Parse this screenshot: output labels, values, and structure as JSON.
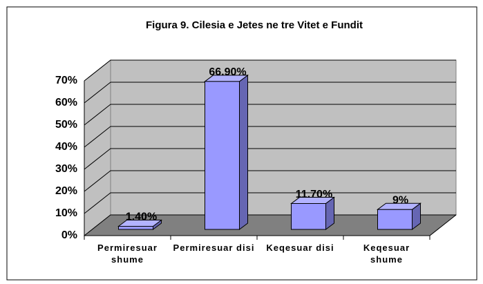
{
  "chart_data": {
    "type": "bar3d",
    "title": "Figura 9. Cilesia e Jetes ne tre Vitet e Fundit",
    "categories": [
      "Permiresuar shume",
      "Permiresuar disi",
      "Keqesuar disi",
      "Keqesuar shume"
    ],
    "values": [
      1.4,
      66.9,
      11.7,
      9
    ],
    "value_labels": [
      "1.40%",
      "66.90%",
      "11.70%",
      "9%"
    ],
    "color": "#9999ff",
    "ylim": [
      0,
      70
    ],
    "yticks": [
      {
        "value": 0,
        "label": "0%"
      },
      {
        "value": 10,
        "label": "10%"
      },
      {
        "value": 20,
        "label": "20%"
      },
      {
        "value": 30,
        "label": "30%"
      },
      {
        "value": 40,
        "label": "40%"
      },
      {
        "value": 50,
        "label": "50%"
      },
      {
        "value": 60,
        "label": "60%"
      },
      {
        "value": 70,
        "label": "70%"
      }
    ],
    "grid": true
  }
}
